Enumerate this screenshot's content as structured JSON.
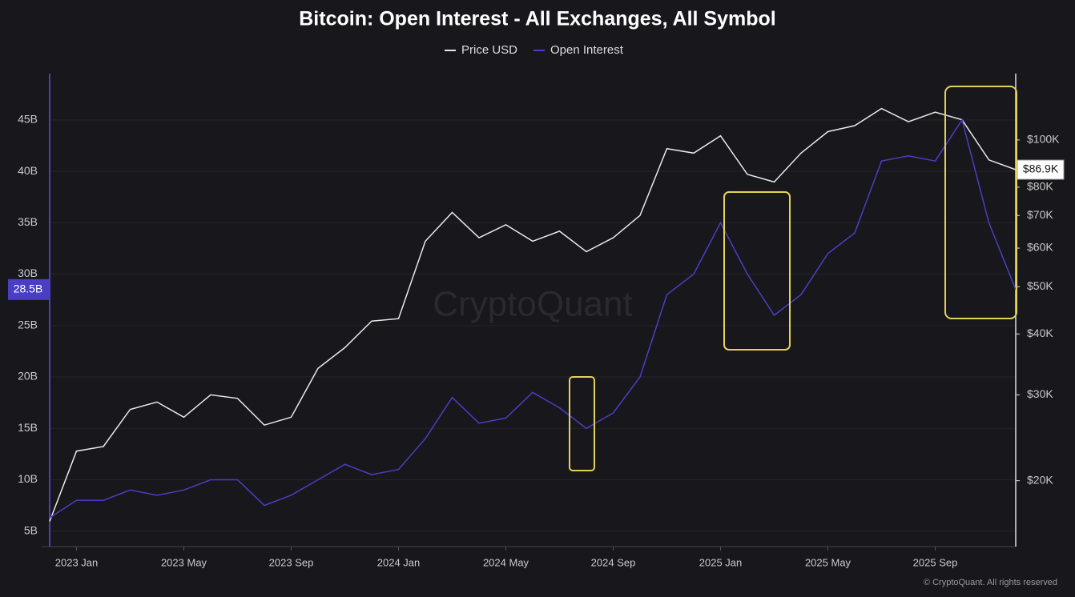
{
  "chart_data": {
    "type": "line",
    "title": "Bitcoin: Open Interest - All Exchanges, All Symbol",
    "x": [
      "2022-12",
      "2023-01",
      "2023-02",
      "2023-03",
      "2023-04",
      "2023-05",
      "2023-06",
      "2023-07",
      "2023-08",
      "2023-09",
      "2023-10",
      "2023-11",
      "2023-12",
      "2024-01",
      "2024-02",
      "2024-03",
      "2024-04",
      "2024-05",
      "2024-06",
      "2024-07",
      "2024-08",
      "2024-09",
      "2024-10",
      "2024-11",
      "2024-12",
      "2025-01",
      "2025-02",
      "2025-03",
      "2025-04",
      "2025-05",
      "2025-06",
      "2025-07",
      "2025-08",
      "2025-09",
      "2025-10",
      "2025-11",
      "2025-12"
    ],
    "xlim": [
      "2022-12",
      "2025-12"
    ],
    "xticks": [
      {
        "value": "2023-01",
        "label": "2023 Jan"
      },
      {
        "value": "2023-05",
        "label": "2023 May"
      },
      {
        "value": "2023-09",
        "label": "2023 Sep"
      },
      {
        "value": "2024-01",
        "label": "2024 Jan"
      },
      {
        "value": "2024-05",
        "label": "2024 May"
      },
      {
        "value": "2024-09",
        "label": "2024 Sep"
      },
      {
        "value": "2025-01",
        "label": "2025 Jan"
      },
      {
        "value": "2025-05",
        "label": "2025 May"
      },
      {
        "value": "2025-09",
        "label": "2025 Sep"
      }
    ],
    "ylim": [
      3.5,
      49.5
    ],
    "yticks": [
      {
        "value": 5,
        "label": "5B"
      },
      {
        "value": 10,
        "label": "10B"
      },
      {
        "value": 15,
        "label": "15B"
      },
      {
        "value": 20,
        "label": "20B"
      },
      {
        "value": 25,
        "label": "25B"
      },
      {
        "value": 30,
        "label": "30B"
      },
      {
        "value": 35,
        "label": "35B"
      },
      {
        "value": 40,
        "label": "40B"
      },
      {
        "value": 45,
        "label": "45B"
      }
    ],
    "y2lim": [
      14650,
      136800
    ],
    "y2scale": "log",
    "y2ticks": [
      {
        "value": 20000,
        "label": "$20K"
      },
      {
        "value": 30000,
        "label": "$30K"
      },
      {
        "value": 40000,
        "label": "$40K"
      },
      {
        "value": 50000,
        "label": "$50K"
      },
      {
        "value": 60000,
        "label": "$60K"
      },
      {
        "value": 70000,
        "label": "$70K"
      },
      {
        "value": 80000,
        "label": "$80K"
      },
      {
        "value": 100000,
        "label": "$100K"
      }
    ],
    "grid": true,
    "series": [
      {
        "name": "Price USD",
        "color": "#e8e8e8",
        "axis": "y2",
        "values": [
          16500,
          23000,
          23500,
          28000,
          29000,
          27000,
          30000,
          29500,
          26000,
          27000,
          34000,
          37500,
          42500,
          43000,
          62000,
          71000,
          63000,
          67000,
          62000,
          65000,
          59000,
          63000,
          70000,
          96000,
          94000,
          102000,
          85000,
          82000,
          94000,
          104000,
          107000,
          116000,
          109000,
          114000,
          110000,
          91000,
          86900
        ],
        "value_labels": [
          null,
          null,
          null,
          null,
          null,
          null,
          null,
          null,
          null,
          null,
          null,
          null,
          null,
          null,
          null,
          null,
          null,
          null,
          null,
          null,
          null,
          null,
          null,
          null,
          null,
          null,
          null,
          null,
          null,
          null,
          null,
          null,
          null,
          null,
          null,
          null,
          "$86.9K"
        ]
      },
      {
        "name": "Open Interest",
        "color": "#4a3fc4",
        "values": [
          6.3,
          8,
          8,
          9,
          8.5,
          9,
          10,
          10,
          7.5,
          8.5,
          10,
          11.5,
          10.5,
          11,
          14,
          18,
          15.5,
          16,
          18.5,
          17,
          15,
          16.5,
          20,
          28,
          30,
          35,
          30,
          26,
          28,
          32,
          34,
          41,
          41.5,
          41,
          45,
          35,
          28.5
        ],
        "value_labels": [
          null,
          null,
          null,
          null,
          null,
          null,
          null,
          null,
          null,
          null,
          null,
          null,
          null,
          null,
          null,
          null,
          null,
          null,
          null,
          null,
          null,
          null,
          null,
          null,
          null,
          null,
          null,
          null,
          null,
          null,
          null,
          null,
          null,
          null,
          null,
          null,
          "28.5B"
        ]
      }
    ],
    "watermark": "CryptoQuant",
    "copyright": "© CryptoQuant. All rights reserved"
  }
}
